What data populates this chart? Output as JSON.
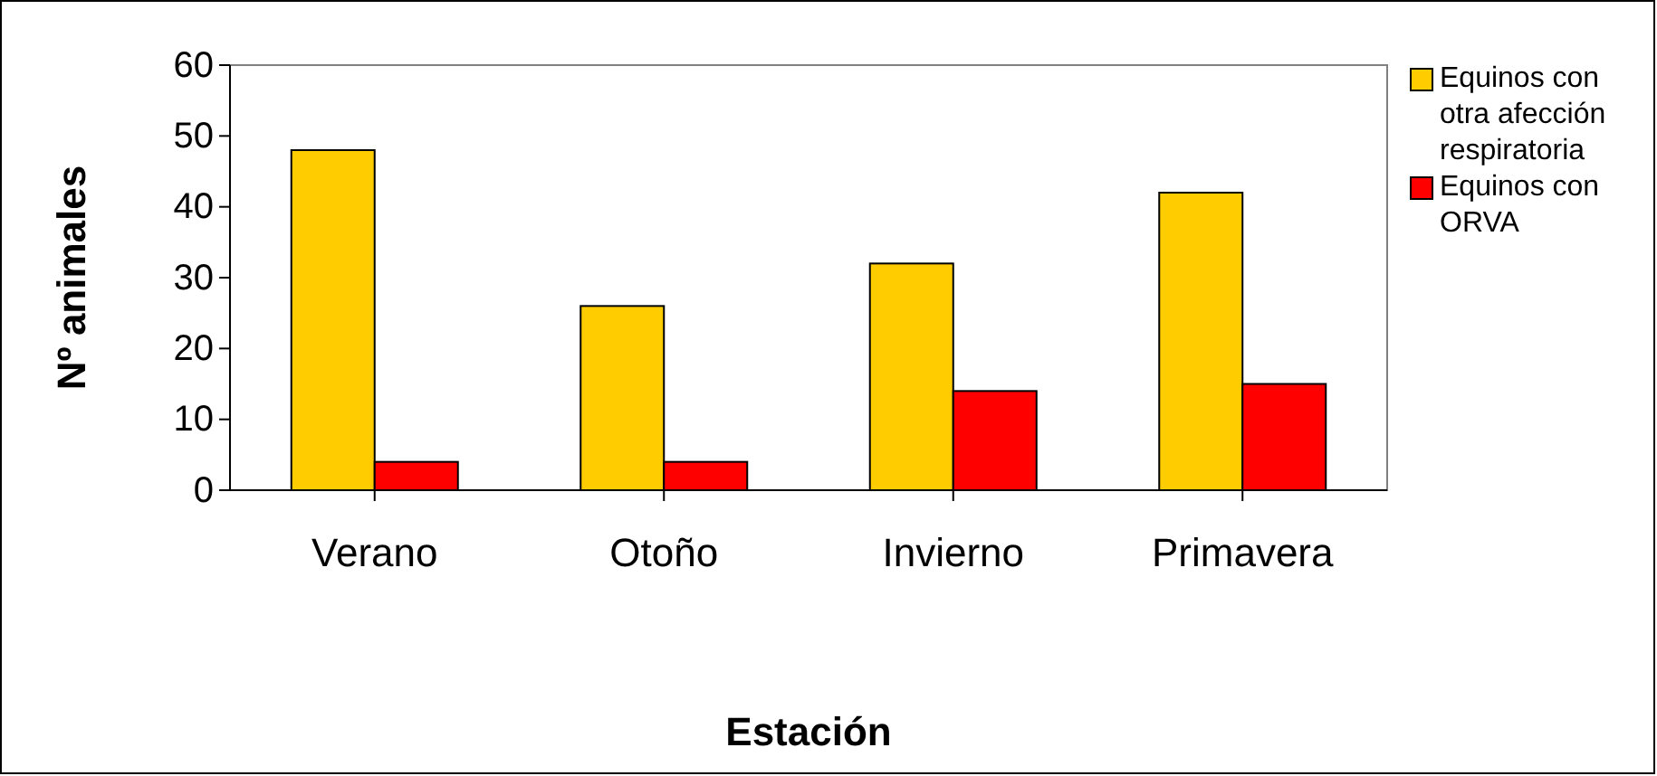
{
  "chart_data": {
    "type": "bar",
    "xlabel": "Estación",
    "ylabel": "Nº animales",
    "categories": [
      "Verano",
      "Otoño",
      "Invierno",
      "Primavera"
    ],
    "series": [
      {
        "name": "Equinos con otra afección respiratoria",
        "color": "#ffcc00",
        "values": [
          48,
          26,
          32,
          42
        ]
      },
      {
        "name": "Equinos con ORVA",
        "color": "#ff0000",
        "values": [
          4,
          4,
          14,
          15
        ]
      }
    ],
    "ylim": [
      0,
      60
    ],
    "yticks": [
      0,
      10,
      20,
      30,
      40,
      50,
      60
    ],
    "grid": false,
    "legend": "right"
  }
}
